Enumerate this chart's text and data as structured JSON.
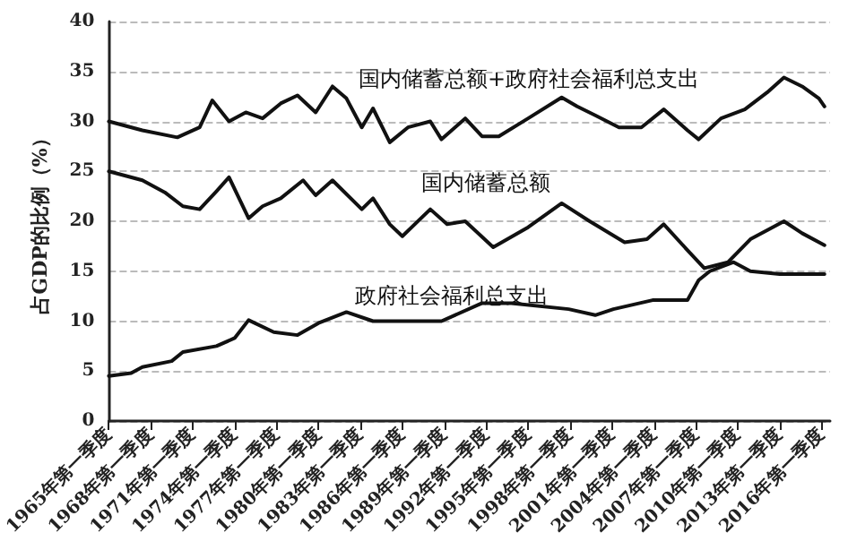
{
  "chart_data": {
    "type": "line",
    "ylabel": "占GDP的比例（%）",
    "xlim": [
      1965,
      2016.6
    ],
    "xticks": [
      {
        "value": 1965,
        "label": "1965年第一季度"
      },
      {
        "value": 1968,
        "label": "1968年第一季度"
      },
      {
        "value": 1971,
        "label": "1971年第一季度"
      },
      {
        "value": 1974,
        "label": "1974年第一季度"
      },
      {
        "value": 1977,
        "label": "1977年第一季度"
      },
      {
        "value": 1980,
        "label": "1980年第一季度"
      },
      {
        "value": 1983,
        "label": "1983年第一季度"
      },
      {
        "value": 1986,
        "label": "1986年第一季度"
      },
      {
        "value": 1989,
        "label": "1989年第一季度"
      },
      {
        "value": 1992,
        "label": "1992年第一季度"
      },
      {
        "value": 1995,
        "label": "1995年第一季度"
      },
      {
        "value": 1998,
        "label": "1998年第一季度"
      },
      {
        "value": 2001,
        "label": "2001年第一季度"
      },
      {
        "value": 2004,
        "label": "2004年第一季度"
      },
      {
        "value": 2007,
        "label": "2007年第一季度"
      },
      {
        "value": 2010,
        "label": "2010年第一季度"
      },
      {
        "value": 2013,
        "label": "2013年第一季度"
      },
      {
        "value": 2016,
        "label": "2016年第一季度"
      }
    ],
    "ylim": [
      0,
      40
    ],
    "yticks": [
      0,
      5,
      10,
      15,
      20,
      25,
      30,
      35,
      40
    ],
    "grid": "y",
    "marker": "none",
    "line_style": "solid",
    "series": [
      {
        "name": "国内储蓄总额+政府社会福利总支出",
        "color": "#111111",
        "x": [
          1965,
          1967.4,
          1969.9,
          1971.5,
          1972.4,
          1973.6,
          1974.8,
          1976,
          1977.3,
          1978.5,
          1979.8,
          1981,
          1982,
          1983.1,
          1983.9,
          1985.1,
          1986.4,
          1988,
          1988.8,
          1990.5,
          1991.7,
          1992.9,
          1995,
          1997.4,
          1998.5,
          1999.8,
          2001.5,
          2003.1,
          2004.7,
          2006.4,
          2007.2,
          2008.8,
          2010.5,
          2012.1,
          2013.3,
          2014.6,
          2015.8,
          2016.2
        ],
        "values": [
          30,
          29.1,
          28.4,
          29.4,
          32.1,
          30,
          30.9,
          30.3,
          31.8,
          32.6,
          30.9,
          33.5,
          32.3,
          29.4,
          31.3,
          27.9,
          29.4,
          30,
          28.2,
          30.3,
          28.5,
          28.5,
          30.3,
          32.4,
          31.5,
          30.6,
          29.4,
          29.4,
          31.2,
          29.1,
          28.2,
          30.3,
          31.2,
          32.9,
          34.4,
          33.5,
          32.3,
          31.5
        ]
      },
      {
        "name": "国内储蓄总额",
        "color": "#111111",
        "x": [
          1965,
          1967.4,
          1969,
          1970.3,
          1971.5,
          1972.7,
          1973.6,
          1975,
          1976,
          1977.3,
          1978.9,
          1979.8,
          1981,
          1983.1,
          1983.9,
          1985.1,
          1986,
          1988,
          1989.2,
          1990.5,
          1992.5,
          1995,
          1997.4,
          1999.4,
          2001.9,
          2003.5,
          2004.7,
          2006.4,
          2007.6,
          2009.3,
          2010.9,
          2013.3,
          2014.6,
          2016.2
        ],
        "values": [
          25,
          24.1,
          22.9,
          21.5,
          21.2,
          23,
          24.4,
          20.3,
          21.5,
          22.3,
          24.1,
          22.6,
          24.1,
          21.2,
          22.3,
          19.7,
          18.5,
          21.2,
          19.7,
          20,
          17.4,
          19.4,
          21.8,
          20,
          17.9,
          18.2,
          19.7,
          17.1,
          15.3,
          15.9,
          18.2,
          20,
          18.8,
          17.6
        ]
      },
      {
        "name": "政府社会福利总支出",
        "color": "#111111",
        "x": [
          1965,
          1966.6,
          1967.4,
          1969.5,
          1970.3,
          1972.7,
          1974,
          1975,
          1976.8,
          1978.5,
          1980,
          1982,
          1983.9,
          1988,
          1988.8,
          1991.7,
          1993.8,
          1997.9,
          1999.8,
          2001.1,
          2003.9,
          2006.4,
          2007.2,
          2008,
          2009.7,
          2010.9,
          2013,
          2016.2
        ],
        "values": [
          4.5,
          4.8,
          5.4,
          6,
          6.9,
          7.5,
          8.3,
          10.1,
          8.9,
          8.6,
          9.8,
          10.9,
          10,
          10,
          10,
          11.8,
          11.8,
          11.2,
          10.6,
          11.2,
          12.1,
          12.1,
          14.1,
          15,
          15.9,
          15,
          14.7,
          14.7
        ]
      }
    ],
    "legend": false
  }
}
